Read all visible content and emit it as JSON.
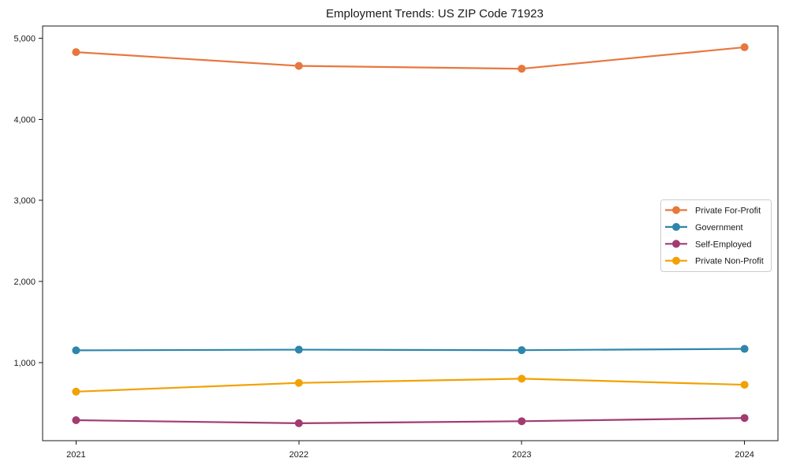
{
  "figure": {
    "background": "#ffffff",
    "axis_color": "#1a1a1a",
    "text_color": "#1a1a1a",
    "legend_border_color": "#cccccc",
    "legend_bg_color": "#ffffff"
  },
  "chart_data": {
    "type": "line",
    "title": "Employment Trends: US ZIP Code 71923",
    "xlabel": "",
    "ylabel": "",
    "x": [
      2021,
      2022,
      2023,
      2024
    ],
    "x_tick_labels": [
      "2021",
      "2022",
      "2023",
      "2024"
    ],
    "yticks": [
      1000,
      2000,
      3000,
      4000,
      5000
    ],
    "ytick_labels": [
      "1,000",
      "2,000",
      "3,000",
      "4,000",
      "5,000"
    ],
    "xlim": [
      2020.85,
      2024.15
    ],
    "ylim": [
      35,
      5152
    ],
    "grid": false,
    "marker": "circle",
    "legend_position": "middle-right",
    "series": [
      {
        "name": "Private For-Profit",
        "color": "#e8773d",
        "values": [
          4830,
          4660,
          4625,
          4890
        ]
      },
      {
        "name": "Government",
        "color": "#2e86ab",
        "values": [
          1150,
          1158,
          1152,
          1168
        ]
      },
      {
        "name": "Self-Employed",
        "color": "#a23b72",
        "values": [
          288,
          250,
          275,
          315
        ]
      },
      {
        "name": "Private Non-Profit",
        "color": "#f2a104",
        "values": [
          640,
          748,
          800,
          725
        ]
      }
    ]
  }
}
